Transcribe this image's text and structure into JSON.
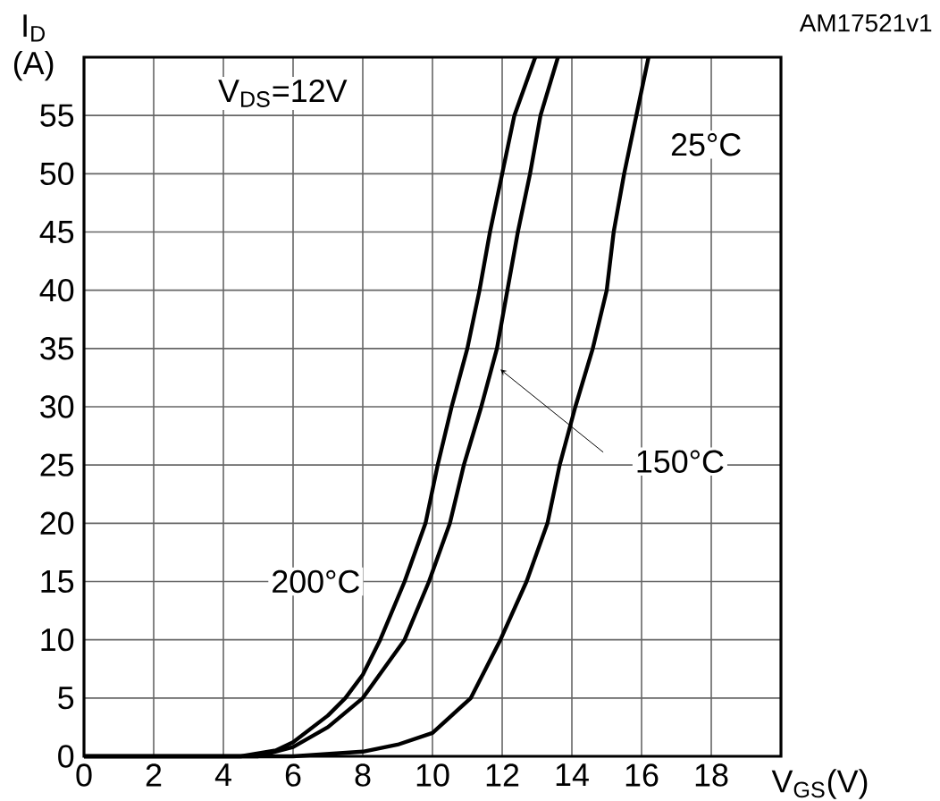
{
  "chart_data": {
    "type": "line",
    "xlabel": "V$_{GS}$(V)",
    "ylabel": "I$_{D}$ (A)",
    "annotations": [
      "V$_{DS}$=12V",
      "AM17521v1"
    ],
    "xlim": [
      0,
      20
    ],
    "ylim": [
      0,
      60
    ],
    "xticks": [
      0,
      2,
      4,
      6,
      8,
      10,
      12,
      14,
      16,
      18
    ],
    "yticks": [
      0,
      5,
      10,
      15,
      20,
      25,
      30,
      35,
      40,
      45,
      50,
      55
    ],
    "grid": true,
    "series": [
      {
        "name": "25°C",
        "color": "#000000",
        "x": [
          0,
          6,
          8,
          9,
          10,
          11.1,
          11.95,
          12.7,
          13.3,
          13.65,
          14.1,
          14.6,
          15.0,
          15.2,
          15.5,
          15.85,
          16.2
        ],
        "values": [
          0,
          0,
          0.4,
          1,
          2,
          5,
          10,
          15,
          20,
          25,
          30,
          35,
          40,
          45,
          50,
          55,
          60
        ]
      },
      {
        "name": "150°C",
        "color": "#000000",
        "x": [
          0,
          5,
          6,
          7,
          8,
          8.6,
          9.2,
          9.9,
          10.5,
          10.9,
          11.4,
          11.85,
          12.15,
          12.45,
          12.8,
          13.1,
          13.6
        ],
        "values": [
          0,
          0,
          0.8,
          2.5,
          5,
          7.5,
          10,
          15,
          20,
          25,
          30,
          35,
          40,
          45,
          50,
          55,
          60
        ]
      },
      {
        "name": "200°C",
        "color": "#000000",
        "x": [
          0,
          4.5,
          5.5,
          6,
          7,
          7.5,
          8,
          8.5,
          9.2,
          9.8,
          10.15,
          10.55,
          11.0,
          11.35,
          11.65,
          12.0,
          12.35,
          12.95
        ],
        "values": [
          0,
          0,
          0.5,
          1.2,
          3.5,
          5,
          7,
          10,
          15,
          20,
          25,
          30,
          35,
          40,
          45,
          50,
          55,
          60
        ]
      }
    ]
  }
}
